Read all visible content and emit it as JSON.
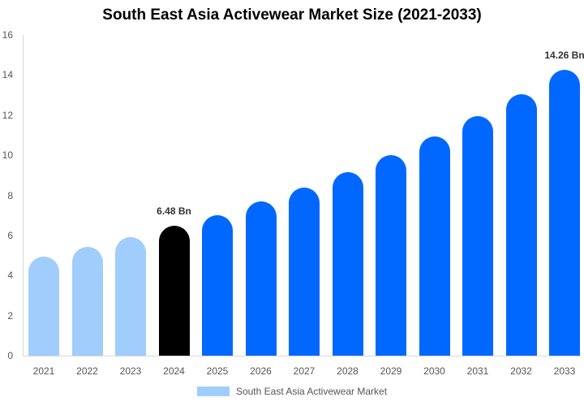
{
  "chart_data": {
    "type": "bar",
    "title": "South East Asia Activewear Market Size (2021-2033)",
    "xlabel": "",
    "ylabel": "",
    "ylim": [
      0,
      16
    ],
    "yticks": [
      0,
      2,
      4,
      6,
      8,
      10,
      12,
      14,
      16
    ],
    "grid": false,
    "legend_position": "bottom",
    "categories": [
      "2021",
      "2022",
      "2023",
      "2024",
      "2025",
      "2026",
      "2027",
      "2028",
      "2029",
      "2030",
      "2031",
      "2032",
      "2033"
    ],
    "series": [
      {
        "name": "South East Asia Activewear Market",
        "values": [
          4.94,
          5.42,
          5.91,
          6.48,
          7.0,
          7.69,
          8.38,
          9.15,
          10.0,
          10.93,
          11.94,
          13.04,
          14.26
        ],
        "colors": [
          "#a0cdfc",
          "#a0cdfc",
          "#a0cdfc",
          "#000000",
          "#0068ff",
          "#0068ff",
          "#0068ff",
          "#0068ff",
          "#0068ff",
          "#0068ff",
          "#0068ff",
          "#0068ff",
          "#0068ff"
        ]
      }
    ],
    "annotations": [
      {
        "category": "2024",
        "text": "6.48 Bn"
      },
      {
        "category": "2033",
        "text": "14.26 Bn"
      }
    ]
  },
  "legend": {
    "label": "South East Asia Activewear Market",
    "color": "#a0cdfc"
  }
}
